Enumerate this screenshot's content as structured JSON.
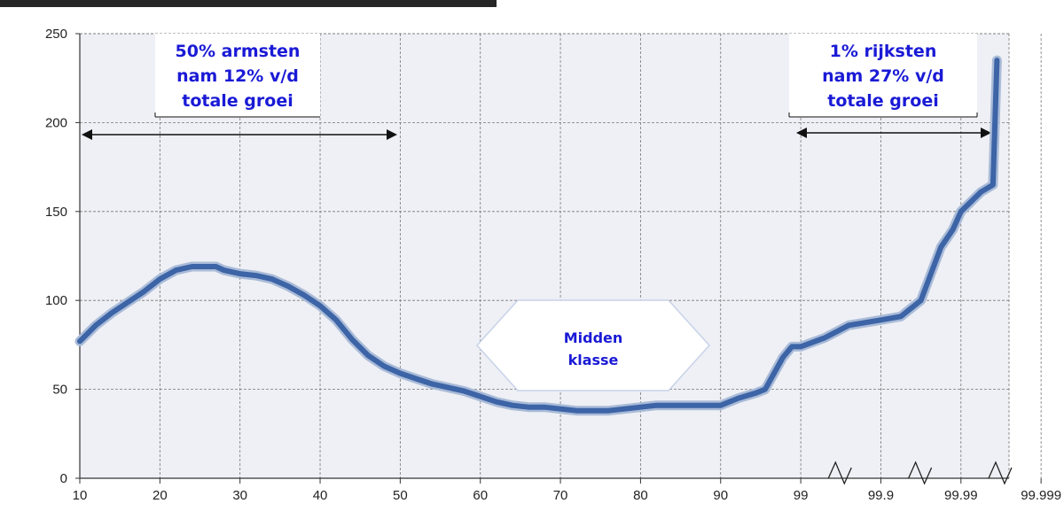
{
  "chart_data": {
    "type": "line",
    "title": "",
    "xlabel": "",
    "ylabel": "",
    "ylim": [
      0,
      250
    ],
    "y_ticks": [
      0,
      50,
      100,
      150,
      200,
      250
    ],
    "x_tick_labels": [
      "10",
      "20",
      "30",
      "40",
      "50",
      "60",
      "70",
      "80",
      "90",
      "99",
      "99.9",
      "99.99",
      "99.999"
    ],
    "grid": true,
    "series": [
      {
        "color": "#3c64a6",
        "x": [
          10,
          12,
          14,
          16,
          18,
          20,
          22,
          24,
          26,
          27,
          28,
          30,
          32,
          34,
          36,
          38,
          40,
          42,
          44,
          46,
          48,
          50,
          52,
          54,
          56,
          58,
          60,
          62,
          64,
          66,
          68,
          70,
          72,
          74,
          76,
          78,
          80,
          82,
          84,
          86,
          88,
          90,
          92,
          94,
          95,
          96,
          97,
          98,
          99,
          99.3,
          99.6,
          99.9,
          "99.9+",
          "99.9++",
          "99.9+++",
          "99.99−",
          "99.99",
          "99.99+",
          "99.999−",
          "99.999"
        ],
        "y": [
          77,
          86,
          93,
          99,
          105,
          112,
          117,
          119,
          119,
          119,
          117,
          115,
          114,
          112,
          108,
          103,
          97,
          89,
          78,
          69,
          63,
          59,
          56,
          53,
          51,
          49,
          46,
          43,
          41,
          40,
          40,
          39,
          38,
          38,
          38,
          39,
          40,
          41,
          41,
          41,
          41,
          41,
          45,
          48,
          50,
          59,
          68,
          74,
          74,
          79,
          86,
          89,
          91,
          100,
          130,
          140,
          150,
          161,
          165,
          235
        ]
      }
    ],
    "annotations": [
      {
        "lines": [
          "50% armsten",
          "nam 12% v/d",
          "totale groei"
        ]
      },
      {
        "lines": [
          "1% rijksten",
          "nam 27% v/d",
          "totale groei"
        ]
      },
      {
        "lines": [
          "Midden",
          "klasse"
        ]
      }
    ]
  }
}
